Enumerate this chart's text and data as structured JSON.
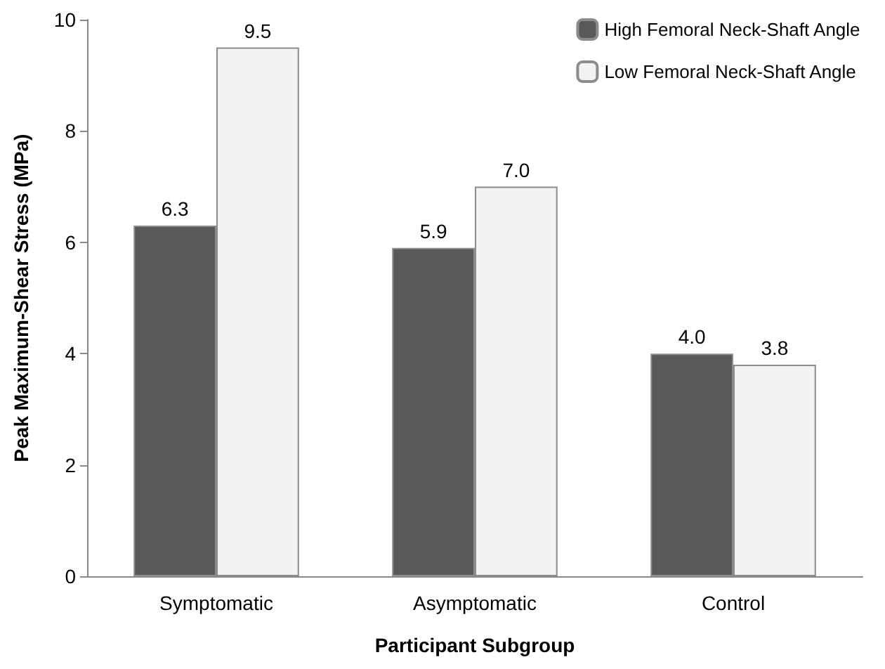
{
  "chart_data": {
    "type": "bar",
    "xlabel": "Participant Subgroup",
    "ylabel": "Peak Maximum-Shear Stress (MPa)",
    "categories": [
      "Symptomatic",
      "Asymptomatic",
      "Control"
    ],
    "series": [
      {
        "name": "High Femoral Neck-Shaft Angle",
        "color": "#595959",
        "values": [
          6.3,
          5.9,
          4.0
        ],
        "value_labels": [
          "6.3",
          "5.9",
          "4.0"
        ]
      },
      {
        "name": "Low Femoral Neck-Shaft Angle",
        "color": "#f2f2f2",
        "values": [
          9.5,
          7.0,
          3.8
        ],
        "value_labels": [
          "9.5",
          "7.0",
          "3.8"
        ]
      }
    ],
    "ylim": [
      0,
      10
    ],
    "yticks": [
      0,
      2,
      4,
      6,
      8,
      10
    ],
    "grid": false,
    "legend": "top right"
  }
}
